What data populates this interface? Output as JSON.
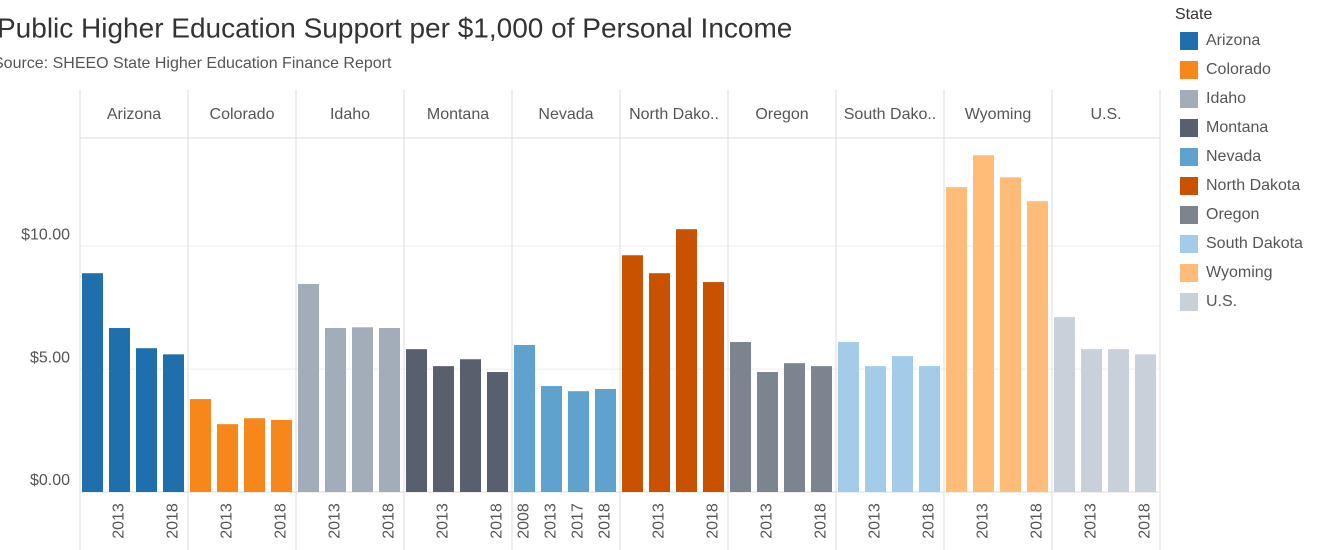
{
  "chart_data": {
    "type": "bar",
    "title": "Public Higher Education Support per $1,000 of Personal Income",
    "subtitle": "Source:  SHEEO State Higher Education Finance Report",
    "legend_title": "State",
    "ylim": [
      0,
      14.4
    ],
    "yticks": [
      {
        "value": 0,
        "label": "$0.00"
      },
      {
        "value": 5,
        "label": "$5.00"
      },
      {
        "value": 10,
        "label": "$10.00"
      }
    ],
    "grid": true,
    "series": [
      {
        "name": "Arizona",
        "header": "Arizona",
        "color": "#1f6fad",
        "categories": [
          null,
          "2013",
          null,
          "2018"
        ],
        "values": [
          8.9,
          6.67,
          5.85,
          5.6
        ]
      },
      {
        "name": "Colorado",
        "header": "Colorado",
        "color": "#f7861b",
        "categories": [
          null,
          "2013",
          null,
          "2018"
        ],
        "values": [
          3.78,
          2.76,
          3.0,
          2.93
        ]
      },
      {
        "name": "Idaho",
        "header": "Idaho",
        "color": "#a3acb9",
        "categories": [
          null,
          "2013",
          null,
          "2018"
        ],
        "values": [
          8.46,
          6.67,
          6.7,
          6.67
        ]
      },
      {
        "name": "Montana",
        "header": "Montana",
        "color": "#57606c",
        "categories": [
          null,
          "2013",
          null,
          "2018"
        ],
        "values": [
          5.81,
          5.12,
          5.4,
          4.88
        ]
      },
      {
        "name": "Nevada",
        "header": "Nevada",
        "color": "#5fa2ce",
        "categories": [
          "2008",
          "2013",
          "2017",
          "2018"
        ],
        "values": [
          5.98,
          4.31,
          4.1,
          4.19
        ]
      },
      {
        "name": "North Dakota",
        "header": "North Dako..",
        "color": "#c85200",
        "categories": [
          null,
          "2013",
          null,
          "2018"
        ],
        "values": [
          9.63,
          8.9,
          10.69,
          8.54
        ]
      },
      {
        "name": "Oregon",
        "header": "Oregon",
        "color": "#7b848f",
        "categories": [
          null,
          "2013",
          null,
          "2018"
        ],
        "values": [
          6.1,
          4.88,
          5.24,
          5.12
        ]
      },
      {
        "name": "South Dakota",
        "header": "South Dako..",
        "color": "#a3cce9",
        "categories": [
          null,
          "2013",
          null,
          "2018"
        ],
        "values": [
          6.1,
          5.12,
          5.53,
          5.12
        ]
      },
      {
        "name": "Wyoming",
        "header": "Wyoming",
        "color": "#ffbc79",
        "categories": [
          null,
          "2013",
          null,
          "2018"
        ],
        "values": [
          12.4,
          13.7,
          12.8,
          11.83
        ]
      },
      {
        "name": "U.S.",
        "header": "U.S.",
        "color": "#c8d0d9",
        "categories": [
          null,
          "2013",
          null,
          "2018"
        ],
        "values": [
          7.11,
          5.81,
          5.81,
          5.6
        ]
      }
    ]
  }
}
